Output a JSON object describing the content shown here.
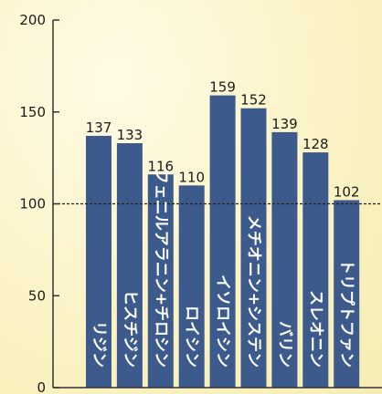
{
  "chart_data": {
    "type": "bar",
    "categories": [
      "リジン",
      "ヒスチジン",
      "フェニルアラニン+チロシン",
      "ロイシン",
      "イソロイシン",
      "メチオニン+システン",
      "バリン",
      "スレオニン",
      "トリプトファン"
    ],
    "values": [
      137,
      133,
      116,
      110,
      159,
      152,
      139,
      128,
      102
    ],
    "ylim": [
      0,
      200
    ],
    "yticks": [
      "0",
      "50",
      "100",
      "150",
      "200"
    ],
    "reference_line": 100,
    "grid": false,
    "colors": {
      "bar": "#3c5a8c",
      "axis": "#333333",
      "reference": "#222222"
    }
  }
}
